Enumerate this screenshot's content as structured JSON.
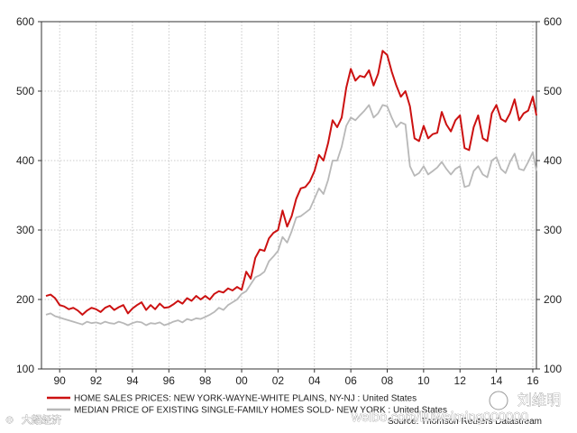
{
  "chart_data": {
    "type": "line",
    "ylim": [
      100,
      600
    ],
    "yticks": [
      "100",
      "200",
      "300",
      "400",
      "500",
      "600"
    ],
    "y_right_ticks": [
      "100",
      "200",
      "300",
      "400",
      "500",
      "600"
    ],
    "xlim": [
      1989.0,
      2016.2
    ],
    "xticks": [
      {
        "x": 1990,
        "label": "90"
      },
      {
        "x": 1992,
        "label": "92"
      },
      {
        "x": 1994,
        "label": "94"
      },
      {
        "x": 1996,
        "label": "96"
      },
      {
        "x": 1998,
        "label": "98"
      },
      {
        "x": 2000,
        "label": "00"
      },
      {
        "x": 2002,
        "label": "02"
      },
      {
        "x": 2004,
        "label": "04"
      },
      {
        "x": 2006,
        "label": "06"
      },
      {
        "x": 2008,
        "label": "08"
      },
      {
        "x": 2010,
        "label": "10"
      },
      {
        "x": 2012,
        "label": "12"
      },
      {
        "x": 2014,
        "label": "14"
      },
      {
        "x": 2016,
        "label": "16"
      }
    ],
    "grid": true,
    "legend_position": "bottom-left",
    "source": "Source: Thomson Reuters Datastream",
    "series": [
      {
        "name": "HOME SALES PRICES: NEW YORK-WAYNE-WHITE PLAINS, NY-NJ : United States",
        "color": "#cc1111",
        "points": [
          [
            1989.25,
            205
          ],
          [
            1989.5,
            207
          ],
          [
            1989.75,
            202
          ],
          [
            1990.0,
            192
          ],
          [
            1990.25,
            190
          ],
          [
            1990.5,
            186
          ],
          [
            1990.75,
            188
          ],
          [
            1991.0,
            184
          ],
          [
            1991.25,
            178
          ],
          [
            1991.5,
            184
          ],
          [
            1991.75,
            188
          ],
          [
            1992.0,
            186
          ],
          [
            1992.25,
            182
          ],
          [
            1992.5,
            188
          ],
          [
            1992.75,
            191
          ],
          [
            1993.0,
            185
          ],
          [
            1993.25,
            189
          ],
          [
            1993.5,
            192
          ],
          [
            1993.75,
            180
          ],
          [
            1994.0,
            187
          ],
          [
            1994.25,
            192
          ],
          [
            1994.5,
            196
          ],
          [
            1994.75,
            185
          ],
          [
            1995.0,
            192
          ],
          [
            1995.25,
            186
          ],
          [
            1995.5,
            194
          ],
          [
            1995.75,
            188
          ],
          [
            1996.0,
            189
          ],
          [
            1996.25,
            193
          ],
          [
            1996.5,
            198
          ],
          [
            1996.75,
            194
          ],
          [
            1997.0,
            202
          ],
          [
            1997.25,
            198
          ],
          [
            1997.5,
            205
          ],
          [
            1997.75,
            200
          ],
          [
            1998.0,
            205
          ],
          [
            1998.25,
            200
          ],
          [
            1998.5,
            208
          ],
          [
            1998.75,
            212
          ],
          [
            1999.0,
            210
          ],
          [
            1999.25,
            216
          ],
          [
            1999.5,
            213
          ],
          [
            1999.75,
            218
          ],
          [
            2000.0,
            214
          ],
          [
            2000.25,
            240
          ],
          [
            2000.5,
            230
          ],
          [
            2000.75,
            260
          ],
          [
            2001.0,
            272
          ],
          [
            2001.25,
            270
          ],
          [
            2001.5,
            288
          ],
          [
            2001.75,
            296
          ],
          [
            2002.0,
            300
          ],
          [
            2002.25,
            328
          ],
          [
            2002.5,
            305
          ],
          [
            2002.75,
            320
          ],
          [
            2003.0,
            345
          ],
          [
            2003.25,
            360
          ],
          [
            2003.5,
            362
          ],
          [
            2003.75,
            370
          ],
          [
            2004.0,
            385
          ],
          [
            2004.25,
            408
          ],
          [
            2004.5,
            400
          ],
          [
            2004.75,
            425
          ],
          [
            2005.0,
            458
          ],
          [
            2005.25,
            448
          ],
          [
            2005.5,
            462
          ],
          [
            2005.75,
            505
          ],
          [
            2006.0,
            532
          ],
          [
            2006.25,
            515
          ],
          [
            2006.5,
            522
          ],
          [
            2006.75,
            520
          ],
          [
            2007.0,
            530
          ],
          [
            2007.25,
            508
          ],
          [
            2007.5,
            525
          ],
          [
            2007.75,
            558
          ],
          [
            2008.0,
            552
          ],
          [
            2008.25,
            528
          ],
          [
            2008.5,
            508
          ],
          [
            2008.75,
            492
          ],
          [
            2009.0,
            500
          ],
          [
            2009.25,
            478
          ],
          [
            2009.5,
            432
          ],
          [
            2009.75,
            428
          ],
          [
            2010.0,
            450
          ],
          [
            2010.25,
            432
          ],
          [
            2010.5,
            438
          ],
          [
            2010.75,
            440
          ],
          [
            2011.0,
            470
          ],
          [
            2011.25,
            452
          ],
          [
            2011.5,
            442
          ],
          [
            2011.75,
            458
          ],
          [
            2012.0,
            465
          ],
          [
            2012.25,
            418
          ],
          [
            2012.5,
            415
          ],
          [
            2012.75,
            448
          ],
          [
            2013.0,
            465
          ],
          [
            2013.25,
            432
          ],
          [
            2013.5,
            428
          ],
          [
            2013.75,
            468
          ],
          [
            2014.0,
            480
          ],
          [
            2014.25,
            460
          ],
          [
            2014.5,
            456
          ],
          [
            2014.75,
            468
          ],
          [
            2015.0,
            488
          ],
          [
            2015.25,
            458
          ],
          [
            2015.5,
            468
          ],
          [
            2015.75,
            472
          ],
          [
            2016.0,
            492
          ],
          [
            2016.2,
            465
          ]
        ]
      },
      {
        "name": "MEDIAN PRICE OF EXISTING SINGLE-FAMILY HOMES SOLD- NEW YORK : United States",
        "color": "#b8b8b8",
        "points": [
          [
            1989.25,
            178
          ],
          [
            1989.5,
            180
          ],
          [
            1989.75,
            176
          ],
          [
            1990.0,
            174
          ],
          [
            1990.25,
            172
          ],
          [
            1990.5,
            170
          ],
          [
            1990.75,
            168
          ],
          [
            1991.0,
            166
          ],
          [
            1991.25,
            164
          ],
          [
            1991.5,
            168
          ],
          [
            1991.75,
            166
          ],
          [
            1992.0,
            167
          ],
          [
            1992.25,
            165
          ],
          [
            1992.5,
            168
          ],
          [
            1992.75,
            166
          ],
          [
            1993.0,
            165
          ],
          [
            1993.25,
            168
          ],
          [
            1993.5,
            166
          ],
          [
            1993.75,
            163
          ],
          [
            1994.0,
            166
          ],
          [
            1994.25,
            168
          ],
          [
            1994.5,
            167
          ],
          [
            1994.75,
            163
          ],
          [
            1995.0,
            166
          ],
          [
            1995.25,
            165
          ],
          [
            1995.5,
            167
          ],
          [
            1995.75,
            163
          ],
          [
            1996.0,
            165
          ],
          [
            1996.25,
            168
          ],
          [
            1996.5,
            170
          ],
          [
            1996.75,
            167
          ],
          [
            1997.0,
            172
          ],
          [
            1997.25,
            170
          ],
          [
            1997.5,
            173
          ],
          [
            1997.75,
            172
          ],
          [
            1998.0,
            175
          ],
          [
            1998.25,
            178
          ],
          [
            1998.5,
            182
          ],
          [
            1998.75,
            188
          ],
          [
            1999.0,
            185
          ],
          [
            1999.25,
            192
          ],
          [
            1999.5,
            196
          ],
          [
            1999.75,
            200
          ],
          [
            2000.0,
            208
          ],
          [
            2000.25,
            212
          ],
          [
            2000.5,
            222
          ],
          [
            2000.75,
            232
          ],
          [
            2001.0,
            235
          ],
          [
            2001.25,
            240
          ],
          [
            2001.5,
            255
          ],
          [
            2001.75,
            262
          ],
          [
            2002.0,
            270
          ],
          [
            2002.25,
            290
          ],
          [
            2002.5,
            282
          ],
          [
            2002.75,
            298
          ],
          [
            2003.0,
            318
          ],
          [
            2003.25,
            320
          ],
          [
            2003.5,
            325
          ],
          [
            2003.75,
            330
          ],
          [
            2004.0,
            345
          ],
          [
            2004.25,
            360
          ],
          [
            2004.5,
            352
          ],
          [
            2004.75,
            372
          ],
          [
            2005.0,
            400
          ],
          [
            2005.25,
            400
          ],
          [
            2005.5,
            420
          ],
          [
            2005.75,
            450
          ],
          [
            2006.0,
            462
          ],
          [
            2006.25,
            458
          ],
          [
            2006.5,
            465
          ],
          [
            2006.75,
            472
          ],
          [
            2007.0,
            480
          ],
          [
            2007.25,
            462
          ],
          [
            2007.5,
            468
          ],
          [
            2007.75,
            480
          ],
          [
            2008.0,
            478
          ],
          [
            2008.25,
            462
          ],
          [
            2008.5,
            448
          ],
          [
            2008.75,
            455
          ],
          [
            2009.0,
            452
          ],
          [
            2009.25,
            392
          ],
          [
            2009.5,
            378
          ],
          [
            2009.75,
            382
          ],
          [
            2010.0,
            392
          ],
          [
            2010.25,
            380
          ],
          [
            2010.5,
            385
          ],
          [
            2010.75,
            390
          ],
          [
            2011.0,
            398
          ],
          [
            2011.25,
            388
          ],
          [
            2011.5,
            380
          ],
          [
            2011.75,
            388
          ],
          [
            2012.0,
            392
          ],
          [
            2012.25,
            362
          ],
          [
            2012.5,
            364
          ],
          [
            2012.75,
            385
          ],
          [
            2013.0,
            392
          ],
          [
            2013.25,
            380
          ],
          [
            2013.5,
            376
          ],
          [
            2013.75,
            400
          ],
          [
            2014.0,
            405
          ],
          [
            2014.25,
            388
          ],
          [
            2014.5,
            382
          ],
          [
            2014.75,
            398
          ],
          [
            2015.0,
            410
          ],
          [
            2015.25,
            388
          ],
          [
            2015.5,
            386
          ],
          [
            2015.75,
            398
          ],
          [
            2016.0,
            412
          ],
          [
            2016.2,
            385
          ]
        ]
      }
    ]
  },
  "watermarks": [
    {
      "text": "刘维明"
    },
    {
      "text": "weibo.com/liuweiming000000"
    },
    {
      "text": "大韶经济"
    }
  ]
}
